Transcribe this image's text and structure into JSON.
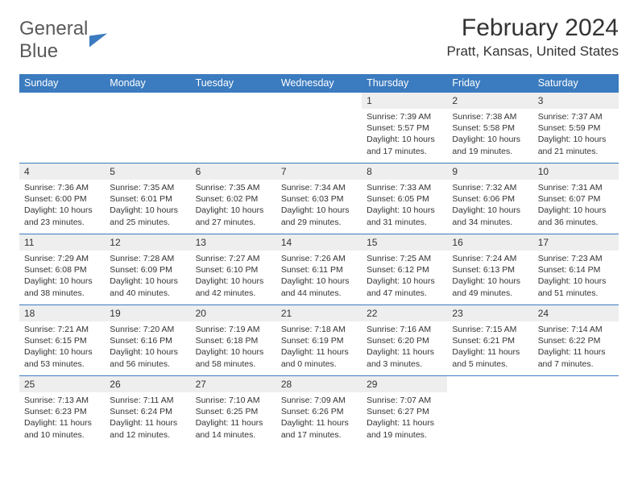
{
  "logo": {
    "word1": "General",
    "word2": "Blue"
  },
  "title": "February 2024",
  "location": "Pratt, Kansas, United States",
  "colors": {
    "header_bg": "#3b7bbf",
    "header_fg": "#ffffff",
    "daynum_bg": "#eeeeee",
    "text": "#333333",
    "rule": "#3b7bbf",
    "page_bg": "#ffffff"
  },
  "typography": {
    "title_fontsize": 30,
    "location_fontsize": 17,
    "dow_fontsize": 12.5,
    "daynum_fontsize": 12,
    "daydata_fontsize": 10.5
  },
  "dows": [
    "Sunday",
    "Monday",
    "Tuesday",
    "Wednesday",
    "Thursday",
    "Friday",
    "Saturday"
  ],
  "weeks": [
    [
      null,
      null,
      null,
      null,
      {
        "n": "1",
        "sr": "7:39 AM",
        "ss": "5:57 PM",
        "dl": "10 hours and 17 minutes."
      },
      {
        "n": "2",
        "sr": "7:38 AM",
        "ss": "5:58 PM",
        "dl": "10 hours and 19 minutes."
      },
      {
        "n": "3",
        "sr": "7:37 AM",
        "ss": "5:59 PM",
        "dl": "10 hours and 21 minutes."
      }
    ],
    [
      {
        "n": "4",
        "sr": "7:36 AM",
        "ss": "6:00 PM",
        "dl": "10 hours and 23 minutes."
      },
      {
        "n": "5",
        "sr": "7:35 AM",
        "ss": "6:01 PM",
        "dl": "10 hours and 25 minutes."
      },
      {
        "n": "6",
        "sr": "7:35 AM",
        "ss": "6:02 PM",
        "dl": "10 hours and 27 minutes."
      },
      {
        "n": "7",
        "sr": "7:34 AM",
        "ss": "6:03 PM",
        "dl": "10 hours and 29 minutes."
      },
      {
        "n": "8",
        "sr": "7:33 AM",
        "ss": "6:05 PM",
        "dl": "10 hours and 31 minutes."
      },
      {
        "n": "9",
        "sr": "7:32 AM",
        "ss": "6:06 PM",
        "dl": "10 hours and 34 minutes."
      },
      {
        "n": "10",
        "sr": "7:31 AM",
        "ss": "6:07 PM",
        "dl": "10 hours and 36 minutes."
      }
    ],
    [
      {
        "n": "11",
        "sr": "7:29 AM",
        "ss": "6:08 PM",
        "dl": "10 hours and 38 minutes."
      },
      {
        "n": "12",
        "sr": "7:28 AM",
        "ss": "6:09 PM",
        "dl": "10 hours and 40 minutes."
      },
      {
        "n": "13",
        "sr": "7:27 AM",
        "ss": "6:10 PM",
        "dl": "10 hours and 42 minutes."
      },
      {
        "n": "14",
        "sr": "7:26 AM",
        "ss": "6:11 PM",
        "dl": "10 hours and 44 minutes."
      },
      {
        "n": "15",
        "sr": "7:25 AM",
        "ss": "6:12 PM",
        "dl": "10 hours and 47 minutes."
      },
      {
        "n": "16",
        "sr": "7:24 AM",
        "ss": "6:13 PM",
        "dl": "10 hours and 49 minutes."
      },
      {
        "n": "17",
        "sr": "7:23 AM",
        "ss": "6:14 PM",
        "dl": "10 hours and 51 minutes."
      }
    ],
    [
      {
        "n": "18",
        "sr": "7:21 AM",
        "ss": "6:15 PM",
        "dl": "10 hours and 53 minutes."
      },
      {
        "n": "19",
        "sr": "7:20 AM",
        "ss": "6:16 PM",
        "dl": "10 hours and 56 minutes."
      },
      {
        "n": "20",
        "sr": "7:19 AM",
        "ss": "6:18 PM",
        "dl": "10 hours and 58 minutes."
      },
      {
        "n": "21",
        "sr": "7:18 AM",
        "ss": "6:19 PM",
        "dl": "11 hours and 0 minutes."
      },
      {
        "n": "22",
        "sr": "7:16 AM",
        "ss": "6:20 PM",
        "dl": "11 hours and 3 minutes."
      },
      {
        "n": "23",
        "sr": "7:15 AM",
        "ss": "6:21 PM",
        "dl": "11 hours and 5 minutes."
      },
      {
        "n": "24",
        "sr": "7:14 AM",
        "ss": "6:22 PM",
        "dl": "11 hours and 7 minutes."
      }
    ],
    [
      {
        "n": "25",
        "sr": "7:13 AM",
        "ss": "6:23 PM",
        "dl": "11 hours and 10 minutes."
      },
      {
        "n": "26",
        "sr": "7:11 AM",
        "ss": "6:24 PM",
        "dl": "11 hours and 12 minutes."
      },
      {
        "n": "27",
        "sr": "7:10 AM",
        "ss": "6:25 PM",
        "dl": "11 hours and 14 minutes."
      },
      {
        "n": "28",
        "sr": "7:09 AM",
        "ss": "6:26 PM",
        "dl": "11 hours and 17 minutes."
      },
      {
        "n": "29",
        "sr": "7:07 AM",
        "ss": "6:27 PM",
        "dl": "11 hours and 19 minutes."
      },
      null,
      null
    ]
  ],
  "labels": {
    "sunrise": "Sunrise: ",
    "sunset": "Sunset: ",
    "daylight": "Daylight: "
  }
}
